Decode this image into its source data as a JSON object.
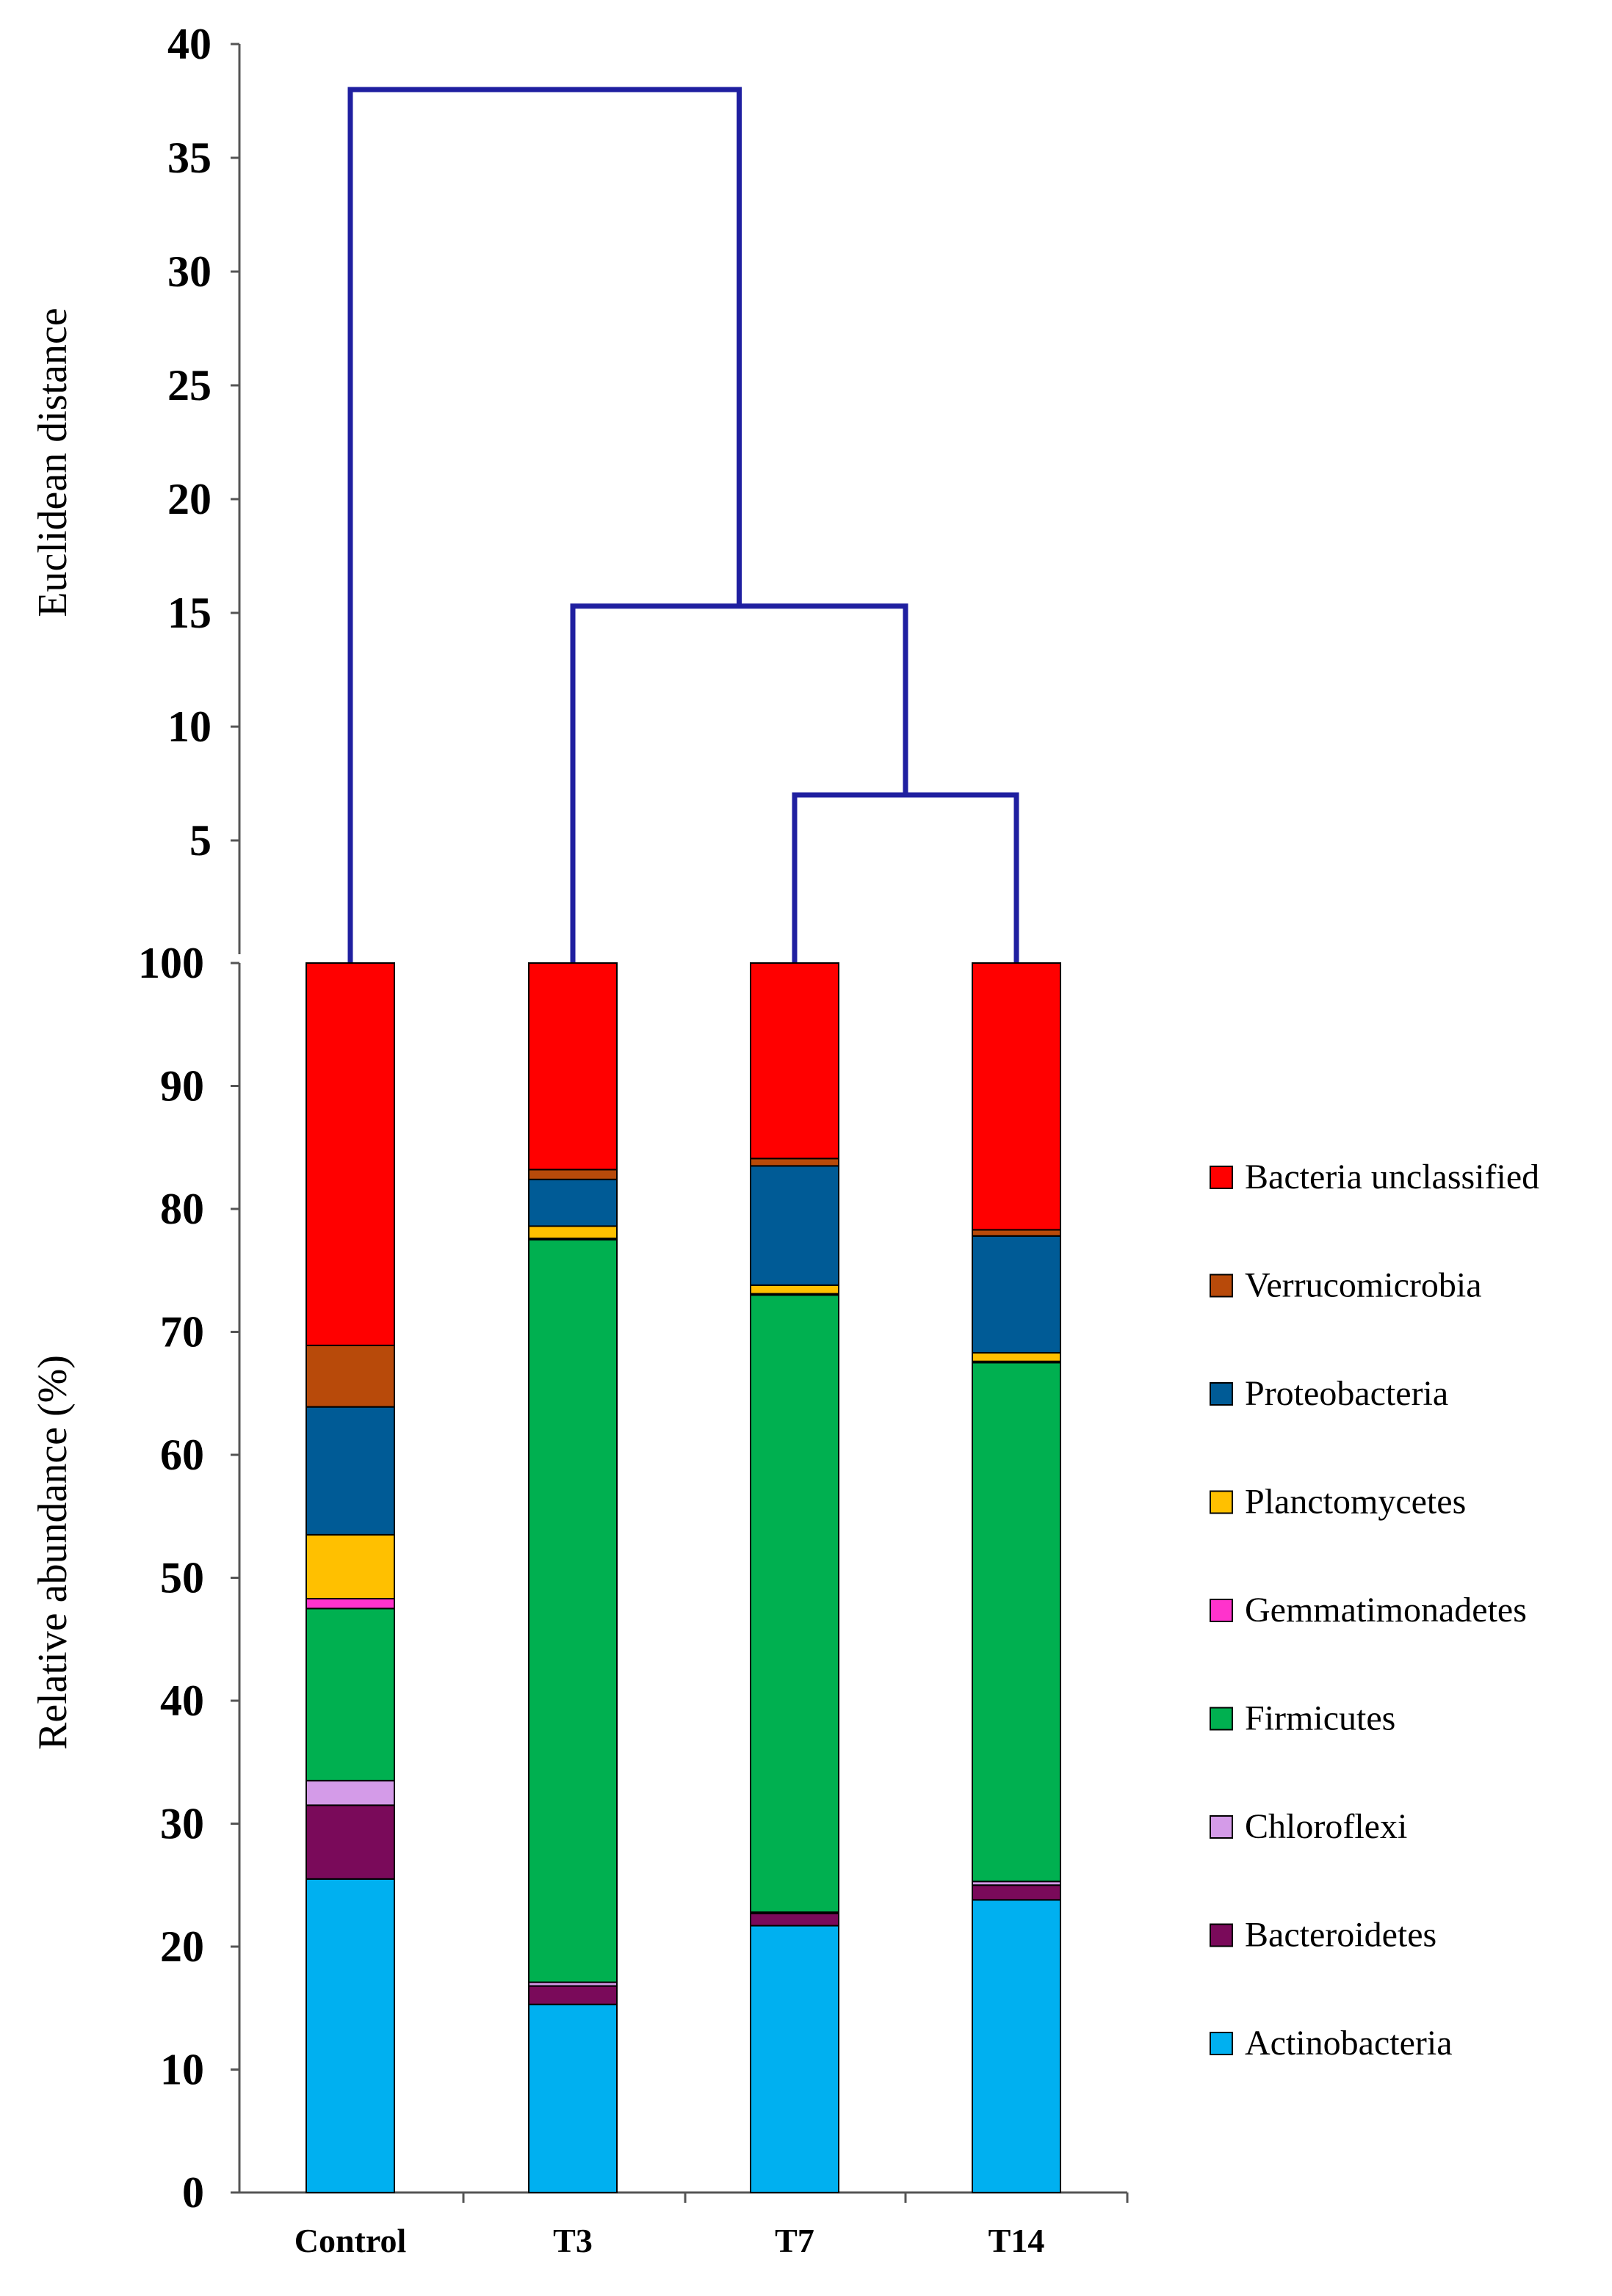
{
  "chart_data": [
    {
      "type": "dendrogram",
      "ylabel": "Euclidean distance",
      "ylim": [
        0,
        40
      ],
      "yticks": [
        5,
        10,
        15,
        20,
        25,
        30,
        35,
        40
      ],
      "leaves": [
        "Control",
        "T3",
        "T7",
        "T14"
      ],
      "merges": [
        {
          "left": "T7",
          "right": "T14",
          "height": 7
        },
        {
          "left": "T3",
          "right": "T7+T14",
          "height": 15.3
        },
        {
          "left": "Control",
          "right": "T3+T7+T14",
          "height": 38
        }
      ],
      "line_color": "#1f1fa0"
    },
    {
      "type": "bar",
      "stacked": true,
      "ylabel": "Relative abundance (%)",
      "ylim": [
        0,
        100
      ],
      "yticks": [
        0,
        10,
        20,
        30,
        40,
        50,
        60,
        70,
        80,
        90,
        100
      ],
      "categories": [
        "Control",
        "T3",
        "T7",
        "T14"
      ],
      "series": [
        {
          "name": "Actinobacteria",
          "color": "#00b0f0",
          "values": [
            25.5,
            15.3,
            21.7,
            23.8
          ]
        },
        {
          "name": "Bacteroidetes",
          "color": "#7a0a5a",
          "values": [
            6.0,
            1.5,
            1.0,
            1.2
          ]
        },
        {
          "name": "Chloroflexi",
          "color": "#d49be8",
          "values": [
            2.0,
            0.3,
            0.1,
            0.3
          ]
        },
        {
          "name": "Firmicutes",
          "color": "#00b050",
          "values": [
            14.0,
            60.4,
            50.2,
            42.2
          ]
        },
        {
          "name": "Gemmatimonadetes",
          "color": "#ff33cc",
          "values": [
            0.8,
            0.1,
            0.1,
            0.1
          ]
        },
        {
          "name": "Planctomycetes",
          "color": "#ffc000",
          "values": [
            5.2,
            1.0,
            0.7,
            0.7
          ]
        },
        {
          "name": "Proteobacteria",
          "color": "#005b96",
          "values": [
            10.4,
            3.8,
            9.7,
            9.5
          ]
        },
        {
          "name": "Verrucomicrobia",
          "color": "#b84a0a",
          "values": [
            5.0,
            0.8,
            0.6,
            0.5
          ]
        },
        {
          "name": "Bacteria unclassified",
          "color": "#ff0000",
          "values": [
            31.1,
            16.8,
            15.9,
            21.7
          ]
        }
      ],
      "legend_position": "right"
    }
  ]
}
